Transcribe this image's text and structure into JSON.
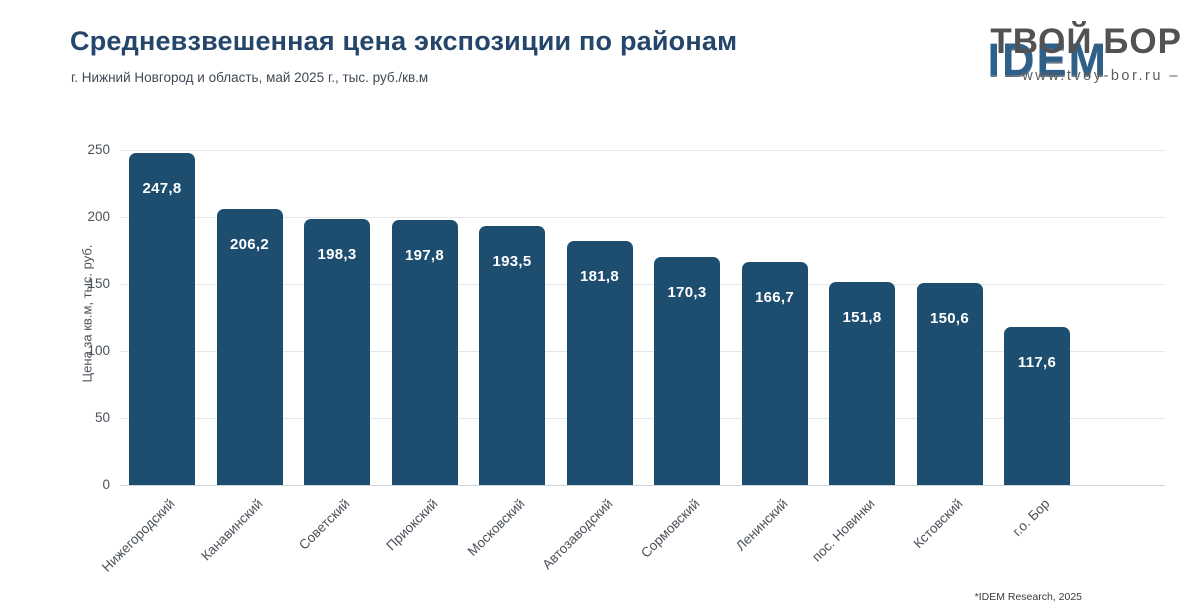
{
  "header": {
    "title": "Средневзвешенная цена экспозиции по районам",
    "subtitle": "г. Нижний Новгород и область, май 2025 г., тыс. руб./кв.м"
  },
  "watermark": {
    "idem_logo": "IDEM",
    "brand": "ТВОЙ БОР",
    "url": "– www.tvoy-bor.ru –"
  },
  "footer": {
    "source": "*IDEM Research, 2025"
  },
  "colors": {
    "bar": "#1e4e6f",
    "title": "#24466b",
    "grid": "#e4e7e9",
    "value_label": "#ffffff"
  },
  "chart_data": {
    "type": "bar",
    "title": "Средневзвешенная цена экспозиции по районам",
    "subtitle": "г. Нижний Новгород и область, май 2025 г., тыс. руб./кв.м",
    "categories": [
      "Нижегородский",
      "Канавинский",
      "Советский",
      "Приокский",
      "Московский",
      "Автозаводский",
      "Сормовский",
      "Ленинский",
      "пос. Новинки",
      "Кстовский",
      "г.о. Бор"
    ],
    "values": [
      247.8,
      206.2,
      198.3,
      197.8,
      193.5,
      181.8,
      170.3,
      166.7,
      151.8,
      150.6,
      117.6
    ],
    "value_labels": [
      "247,8",
      "206,2",
      "198,3",
      "197,8",
      "193,5",
      "181,8",
      "170,3",
      "166,7",
      "151,8",
      "150,6",
      "117,6"
    ],
    "xlabel": "",
    "ylabel": "Цена за кв.м, тыс. руб.",
    "ylim": [
      0,
      250
    ],
    "yticks": [
      0,
      50,
      100,
      150,
      200,
      250
    ],
    "grid": true,
    "legend": false,
    "bar_color": "#1e4e6f",
    "source_note": "*IDEM Research, 2025"
  }
}
